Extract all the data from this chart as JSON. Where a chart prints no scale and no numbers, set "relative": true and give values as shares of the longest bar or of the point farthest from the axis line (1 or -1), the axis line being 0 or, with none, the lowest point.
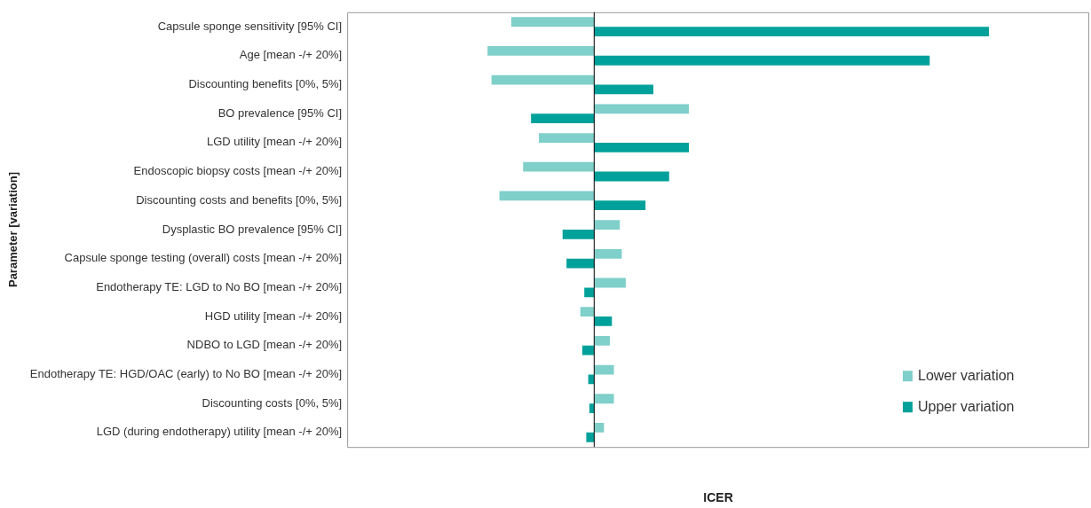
{
  "chart_data": {
    "type": "bar",
    "orientation": "horizontal",
    "relative": true,
    "xlabel": "ICER",
    "ylabel": "Parameter [variation]",
    "categories": [
      "Capsule sponge sensitivity [95% CI]",
      "Age [mean -/+ 20%]",
      "Discounting benefits [0%, 5%]",
      "BO prevalence [95% CI]",
      "LGD utility [mean -/+ 20%]",
      "Endoscopic biopsy costs [mean -/+ 20%]",
      "Discounting costs and benefits [0%, 5%]",
      "Dysplastic BO prevalence [95% CI]",
      "Capsule sponge testing (overall) costs [mean -/+ 20%]",
      "Endotherapy TE: LGD to No BO [mean -/+ 20%]",
      "HGD utility [mean -/+ 20%]",
      "NDBO to LGD [mean -/+ 20%]",
      "Endotherapy TE: HGD/OAC (early) to No BO [mean -/+ 20%]",
      "Discounting costs [0%, 5%]",
      "LGD (during endotherapy) utility [mean -/+ 20%]"
    ],
    "series": [
      {
        "name": "Lower variation",
        "color": "#7fcfca",
        "values": [
          -0.21,
          -0.27,
          -0.26,
          0.24,
          -0.14,
          -0.18,
          -0.24,
          0.065,
          0.07,
          0.08,
          -0.035,
          0.04,
          0.05,
          0.05,
          0.025
        ]
      },
      {
        "name": "Upper variation",
        "color": "#00a19a",
        "values": [
          1,
          0.85,
          0.15,
          -0.16,
          0.24,
          0.19,
          0.13,
          -0.08,
          -0.07,
          -0.025,
          0.045,
          -0.03,
          -0.015,
          -0.012,
          -0.02
        ]
      }
    ],
    "legend": "bottom right",
    "tick_labels": "y",
    "grid": false
  }
}
